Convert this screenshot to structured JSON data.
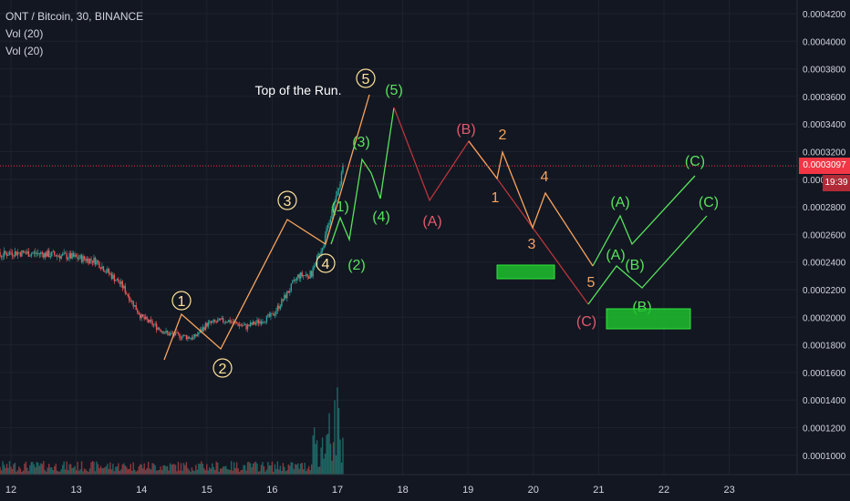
{
  "legend": {
    "symbol": "ONT / Bitcoin, 30, BINANCE",
    "vol1": "Vol (20)",
    "vol2": "Vol (20)"
  },
  "price_scale": {
    "ticks": [
      "0.0004200",
      "0.0004000",
      "0.0003800",
      "0.0003600",
      "0.0003400",
      "0.0003200",
      "0.0003000",
      "0.0002800",
      "0.0002600",
      "0.0002400",
      "0.0002200",
      "0.0002000",
      "0.0001800",
      "0.0001600",
      "0.0001400",
      "0.0001200",
      "0.0001000"
    ],
    "last_price": "0.0003097",
    "countdown": "19:39"
  },
  "time_scale": {
    "ticks": [
      "12",
      "13",
      "14",
      "15",
      "16",
      "17",
      "18",
      "19",
      "20",
      "21",
      "22",
      "23"
    ]
  },
  "annotation": "Top of the Run.",
  "colors": {
    "background": "#131722",
    "up": "#26a69a",
    "down": "#ef5350",
    "orange": "#f7a35c",
    "circled": "#ffe39a",
    "green": "#57e35c",
    "red": "#e05a6a",
    "darkred": "#b8353a",
    "box": "#1fbf2e",
    "last": "#f23645"
  },
  "chart_data": {
    "type": "candlestick",
    "title": "ONT / Bitcoin, 30, BINANCE",
    "x_range_days": [
      11.5,
      23.4
    ],
    "y_range": [
      9.3e-05,
      0.0004339
    ],
    "x_ticks": [
      12,
      13,
      14,
      15,
      16,
      17,
      18,
      19,
      20,
      21,
      22,
      23
    ],
    "last_price": 0.0003097,
    "close_path": [
      [
        11.5,
        0.000257
      ],
      [
        11.7,
        0.000243
      ],
      [
        12.0,
        0.000247
      ],
      [
        12.5,
        0.000246
      ],
      [
        12.9,
        0.000244
      ],
      [
        13.3,
        0.000241
      ],
      [
        13.7,
        0.000223
      ],
      [
        14.0,
        0.0002
      ],
      [
        14.4,
        0.000188
      ],
      [
        14.8,
        0.000185
      ],
      [
        15.0,
        0.000195
      ],
      [
        15.3,
        0.000198
      ],
      [
        15.6,
        0.000193
      ],
      [
        16.0,
        0.000201
      ],
      [
        16.2,
        0.000215
      ],
      [
        16.4,
        0.00023
      ],
      [
        16.6,
        0.000231
      ],
      [
        16.8,
        0.000256
      ],
      [
        17.0,
        0.00029
      ],
      [
        17.1,
        0.0003097
      ]
    ],
    "volume_note": "volume histogram bars along the bottom, large spikes near day 17",
    "wave_labels": {
      "circled": [
        "1",
        "2",
        "3",
        "4",
        "5"
      ],
      "green_primary": [
        "(1)",
        "(2)",
        "(3)",
        "(4)",
        "(5)"
      ],
      "red": [
        "(A)",
        "(B)",
        "(C)"
      ],
      "orange": [
        "1",
        "2",
        "3",
        "4",
        "5"
      ],
      "green_projection_1": [
        "(A)",
        "(B)",
        "(C)"
      ],
      "green_projection_2": [
        "(A)",
        "(B)",
        "(C)"
      ]
    }
  }
}
